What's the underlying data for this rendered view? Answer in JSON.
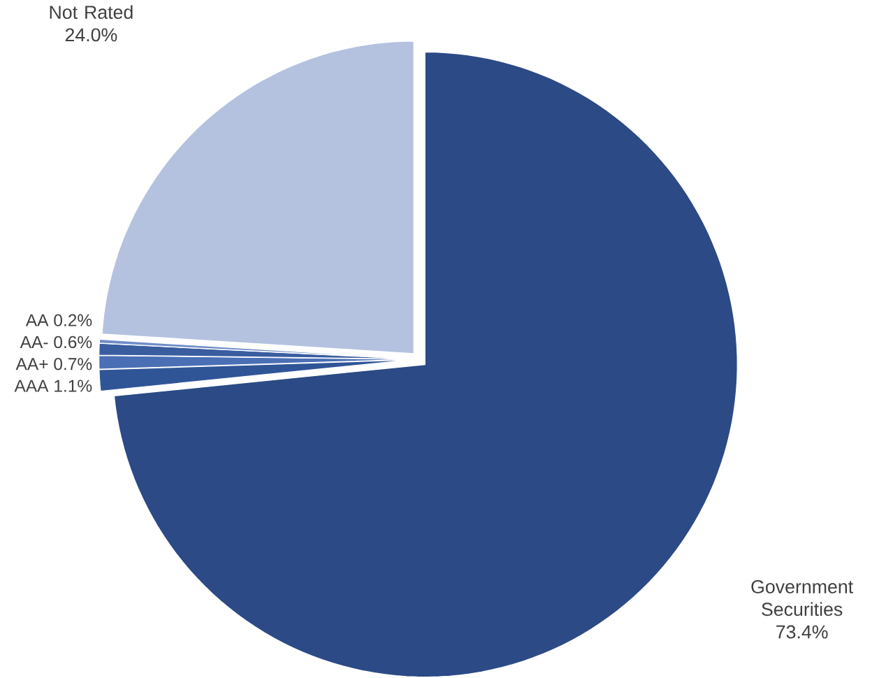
{
  "chart_data": {
    "type": "pie",
    "categories": [
      "Government Securities",
      "AAA",
      "AA+",
      "AA-",
      "AA",
      "Not Rated"
    ],
    "values": [
      73.4,
      1.1,
      0.7,
      0.6,
      0.2,
      24.0
    ],
    "value_labels": [
      "73.4%",
      "1.1%",
      "0.7%",
      "0.6%",
      "0.2%",
      "24.0%"
    ],
    "colors": [
      "#2b4a86",
      "#2f5597",
      "#4a6fb5",
      "#3a5da0",
      "#6f8cc8",
      "#b4c2e0"
    ],
    "legend": false
  }
}
